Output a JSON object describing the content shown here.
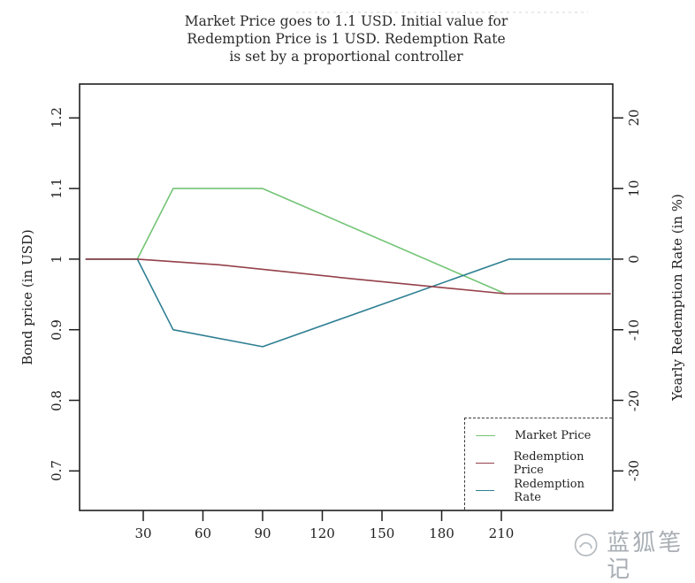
{
  "page": {
    "background": "#ffffff",
    "watermark_text": "蓝狐笔记"
  },
  "chart_data": {
    "type": "line",
    "title": "Market Price goes to 1.1 USD. Initial value for\nRedemption Price is 1 USD. Redemption Rate\nis set by a proportional controller",
    "grid": false,
    "box_color": "#1f1f1f",
    "x_axis": {
      "lim": [
        -2,
        266
      ],
      "tick_values": [
        30,
        60,
        90,
        120,
        150,
        180,
        210
      ],
      "tick_labels": [
        "30",
        "60",
        "90",
        "120",
        "150",
        "180",
        "210"
      ]
    },
    "y_left": {
      "label": "Bond price (in USD)",
      "lim": [
        0.644,
        1.248
      ],
      "tick_values": [
        1.2,
        1.1,
        1.0,
        0.9,
        0.8,
        0.7
      ],
      "tick_labels": [
        "1.2",
        "1.1",
        "1",
        "0.9",
        "0.8",
        "0.7"
      ]
    },
    "y_right": {
      "label": "Yearly Redemption Rate (in %)",
      "lim": [
        -35.6,
        24.8
      ],
      "tick_values": [
        20,
        10,
        0,
        -10,
        -20,
        -30
      ],
      "tick_labels": [
        "20",
        "10",
        "0",
        "-10",
        "-20",
        "-30"
      ]
    },
    "series": [
      {
        "name": "Market Price",
        "axis": "left",
        "color": "#74c476",
        "points": [
          [
            1,
            1.0
          ],
          [
            27,
            1.0
          ],
          [
            45,
            1.1
          ],
          [
            90,
            1.1
          ],
          [
            212,
            0.951
          ]
        ]
      },
      {
        "name": "Redemption Rate",
        "axis": "right",
        "color": "#2e7f93",
        "points": [
          [
            1,
            0
          ],
          [
            27,
            0
          ],
          [
            45,
            -10
          ],
          [
            90,
            -12.4
          ],
          [
            214,
            0
          ],
          [
            265,
            0
          ]
        ]
      },
      {
        "name": "Redemption Price",
        "axis": "left",
        "color": "#94404a",
        "points": [
          [
            1,
            1.0
          ],
          [
            27,
            1.0
          ],
          [
            68,
            0.992
          ],
          [
            136,
            0.972
          ],
          [
            212,
            0.951
          ],
          [
            265,
            0.951
          ]
        ]
      }
    ],
    "legend": {
      "position": "bottom-right",
      "border": "dashed",
      "order": [
        "Market Price",
        "Redemption Price",
        "Redemption Rate"
      ]
    }
  }
}
